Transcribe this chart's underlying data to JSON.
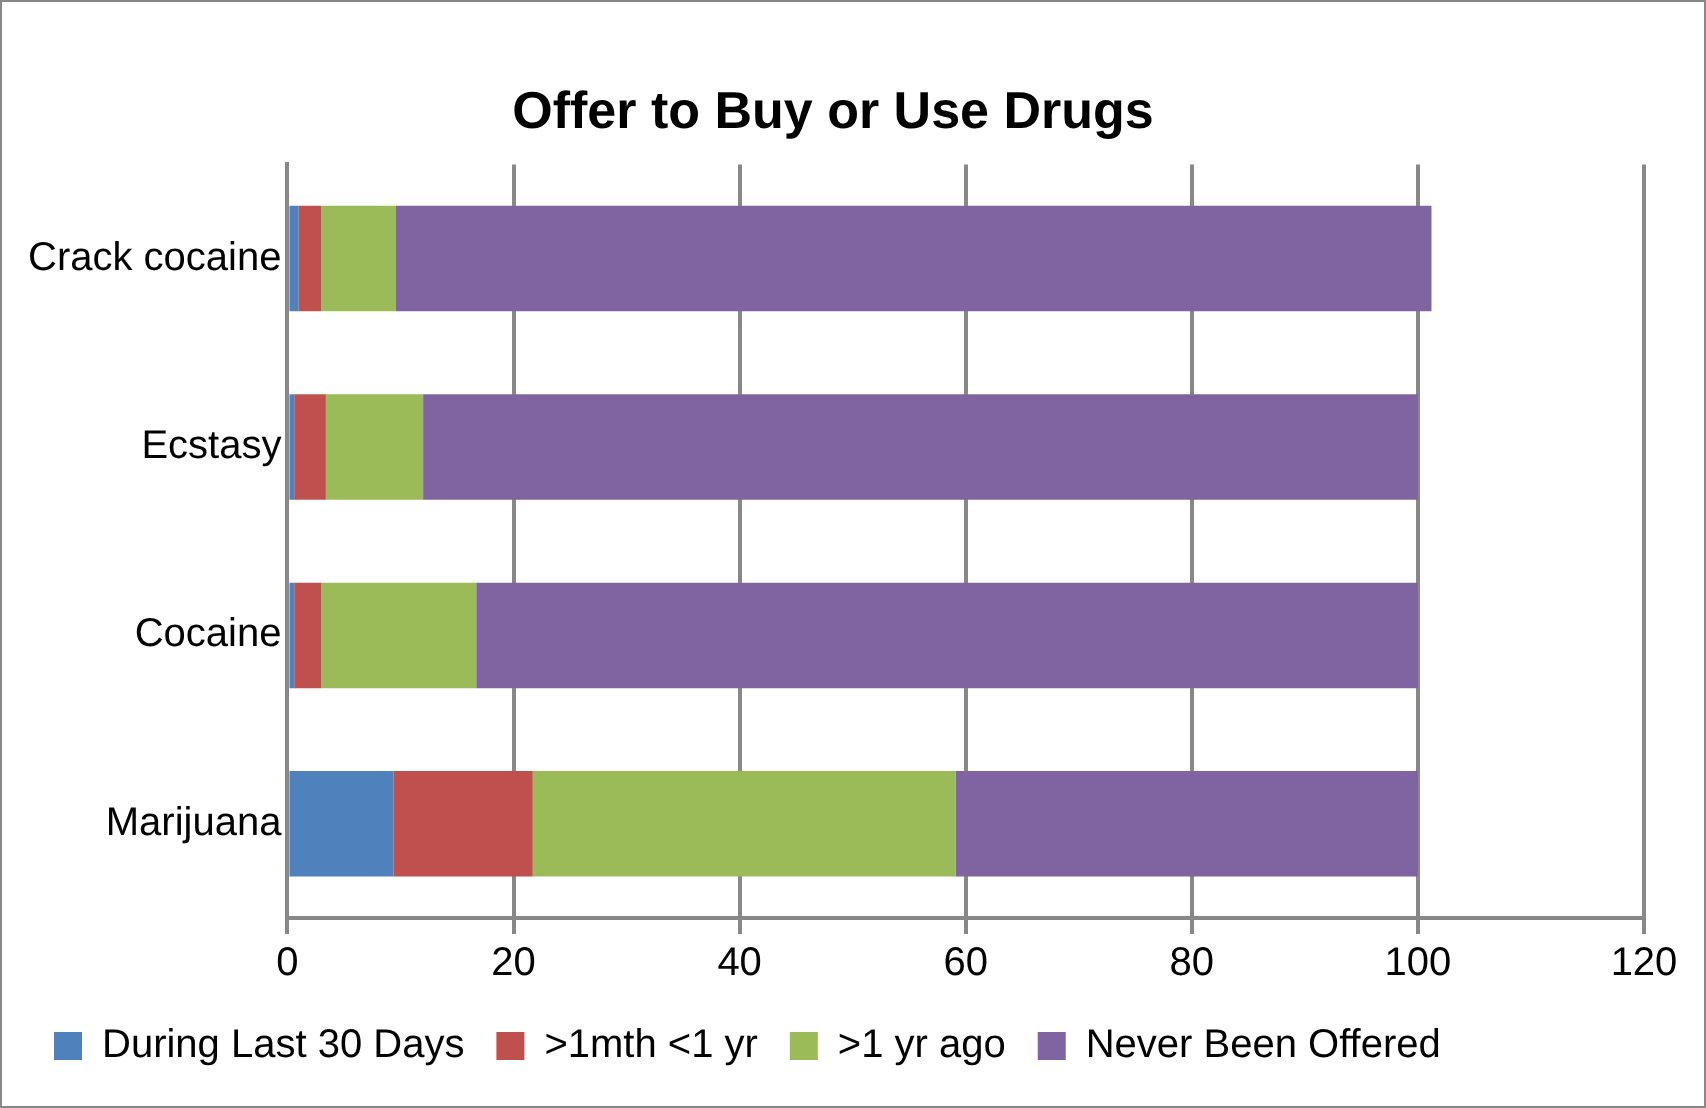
{
  "chart_data": {
    "type": "bar",
    "orientation": "horizontal",
    "stacked": true,
    "title": "Offer to Buy or Use Drugs",
    "categories": [
      "Crack cocaine",
      "Ecstasy",
      "Cocaine",
      "Marijuana"
    ],
    "series": [
      {
        "name": "During Last 30 Days",
        "color": "#4f81bd",
        "values": [
          1.0,
          0.6,
          0.6,
          9.4
        ]
      },
      {
        "name": ">1mth <1 yr",
        "color": "#c0504d",
        "values": [
          2.0,
          2.8,
          2.4,
          12.3
        ]
      },
      {
        "name": ">1 yr ago",
        "color": "#9bbb59",
        "values": [
          6.6,
          8.6,
          13.7,
          37.4
        ]
      },
      {
        "name": "Never Been Offered",
        "color": "#8064a2",
        "values": [
          91.6,
          88.0,
          83.3,
          40.9
        ]
      }
    ],
    "xlim": [
      0,
      120
    ],
    "xticks": [
      0,
      20,
      40,
      60,
      80,
      100,
      120
    ],
    "grid": "x",
    "legend": "bottom"
  }
}
